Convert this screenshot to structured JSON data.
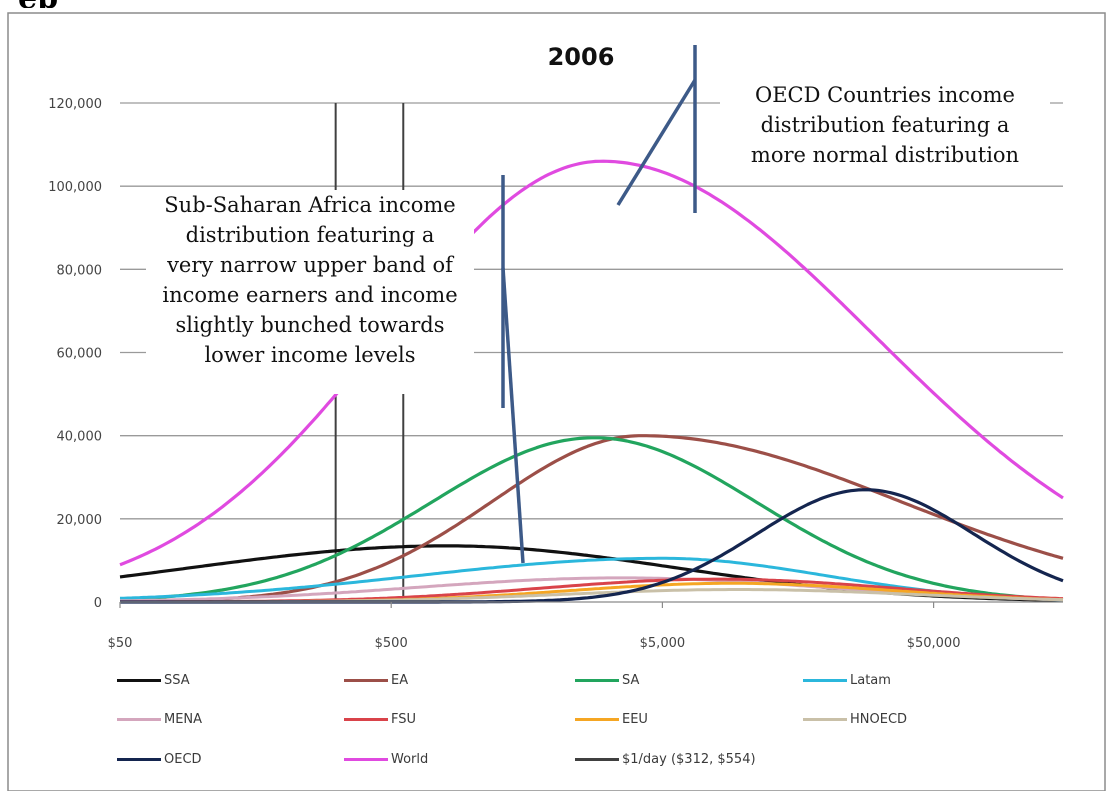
{
  "chart_data": {
    "type": "line",
    "title": "2006",
    "xscale": "log",
    "xlim": [
      50,
      150000
    ],
    "ylim": [
      0,
      120000
    ],
    "x_ticks": [
      {
        "value": 50,
        "label": "$50"
      },
      {
        "value": 500,
        "label": "$500"
      },
      {
        "value": 5000,
        "label": "$5,000"
      },
      {
        "value": 50000,
        "label": "$50,000"
      }
    ],
    "y_ticks": [
      {
        "value": 0,
        "label": "0"
      },
      {
        "value": 20000,
        "label": "20,000"
      },
      {
        "value": 40000,
        "label": "40,000"
      },
      {
        "value": 60000,
        "label": "60,000"
      },
      {
        "value": 80000,
        "label": "80,000"
      },
      {
        "value": 100000,
        "label": "100,000"
      },
      {
        "value": 120000,
        "label": "120,000"
      }
    ],
    "grid": "horizontal",
    "legend_position": "bottom",
    "series": [
      {
        "name": "SSA",
        "color": "#111111",
        "peak_x": 800,
        "peak_y": 13500,
        "sigma_left": 0.95,
        "sigma_right": 0.85
      },
      {
        "name": "EA",
        "color": "#9c4f48",
        "peak_x": 4200,
        "peak_y": 40000,
        "sigma_left": 0.55,
        "sigma_right": 0.95
      },
      {
        "name": "SA",
        "color": "#22a55e",
        "peak_x": 2800,
        "peak_y": 39500,
        "sigma_left": 0.6,
        "sigma_right": 0.6
      },
      {
        "name": "Latam",
        "color": "#2bb7dc",
        "peak_x": 5000,
        "peak_y": 10500,
        "sigma_left": 0.9,
        "sigma_right": 0.6
      },
      {
        "name": "MENA",
        "color": "#d4a6bd",
        "peak_x": 3500,
        "peak_y": 5800,
        "sigma_left": 0.75,
        "sigma_right": 0.75
      },
      {
        "name": "FSU",
        "color": "#d9434a",
        "peak_x": 8000,
        "peak_y": 5500,
        "sigma_left": 0.65,
        "sigma_right": 0.65
      },
      {
        "name": "EEU",
        "color": "#f5a623",
        "peak_x": 9000,
        "peak_y": 4500,
        "sigma_left": 0.6,
        "sigma_right": 0.6
      },
      {
        "name": "HNOECD",
        "color": "#c9c0a8",
        "peak_x": 9500,
        "peak_y": 3000,
        "sigma_left": 0.65,
        "sigma_right": 0.65
      },
      {
        "name": "OECD",
        "color": "#14254f",
        "peak_x": 28000,
        "peak_y": 27000,
        "sigma_left": 0.4,
        "sigma_right": 0.4
      },
      {
        "name": "World",
        "color": "#e04ae0",
        "peak_x": 3000,
        "peak_y": 106000,
        "sigma_left": 0.8,
        "sigma_right": 1.0
      }
    ],
    "markers": {
      "name": "$1/day ($312, $554)",
      "color": "#404040",
      "x": [
        312,
        554
      ]
    },
    "annotations": [
      {
        "id": "oecd",
        "text": [
          "OECD Countries income",
          "distribution featuring a",
          "more normal distribution"
        ]
      },
      {
        "id": "ssa",
        "text": [
          "Sub-Saharan Africa income",
          "distribution featuring a",
          "very narrow upper band of",
          "income earners and income",
          "slightly bunched towards",
          "lower income levels"
        ]
      }
    ],
    "pointer_color": "#3d5a88"
  },
  "page": {
    "header_fragment": "ep"
  }
}
